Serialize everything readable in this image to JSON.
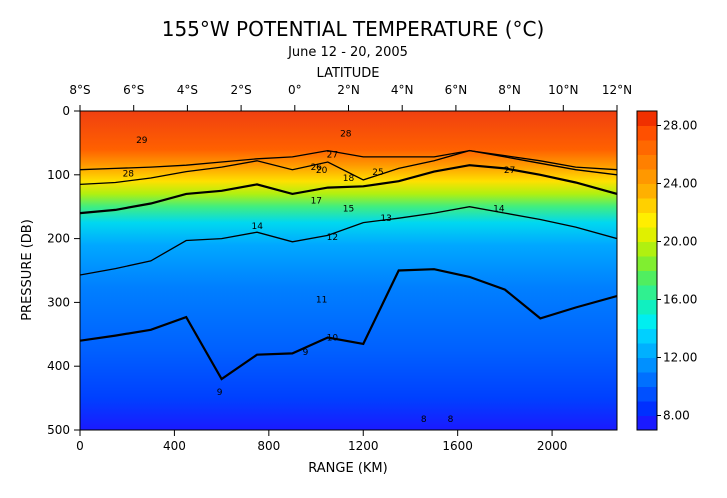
{
  "chart_data": {
    "type": "heatmap",
    "title": "155°W POTENTIAL TEMPERATURE (°C)",
    "subtitle": "June 12 - 20, 2005",
    "top_axis_label": "LATITUDE",
    "top_ticks": [
      "8°S",
      "6°S",
      "4°S",
      "2°S",
      "0°",
      "2°N",
      "4°N",
      "6°N",
      "8°N",
      "10°N",
      "12°N"
    ],
    "xlabel": "RANGE (KM)",
    "ylabel": "PRESSURE (DB)",
    "xlim": [
      0,
      2275
    ],
    "ylim": [
      500,
      0
    ],
    "x_ticks": [
      0,
      400,
      800,
      1200,
      1600,
      2000
    ],
    "y_ticks": [
      0,
      100,
      200,
      300,
      400,
      500
    ],
    "colorbar": {
      "ticks": [
        8.0,
        12.0,
        16.0,
        20.0,
        24.0,
        28.0
      ],
      "tick_labels": [
        "8.00",
        "12.00",
        "16.00",
        "20.00",
        "24.00",
        "28.00"
      ],
      "range": [
        7,
        29
      ],
      "colors": [
        "#1a1aff",
        "#0030ff",
        "#0050ff",
        "#0070ff",
        "#0090ff",
        "#00b0ff",
        "#00d0ff",
        "#00eef0",
        "#10f0c0",
        "#30f090",
        "#50ee60",
        "#80ee30",
        "#b0f010",
        "#e0f000",
        "#ffee00",
        "#ffd000",
        "#ffb000",
        "#ff9800",
        "#ff8000",
        "#ff6800",
        "#ff5000",
        "#f03000"
      ]
    },
    "x": [
      0,
      150,
      300,
      450,
      600,
      750,
      900,
      1050,
      1200,
      1350,
      1500,
      1650,
      1800,
      1950,
      2100,
      2275
    ],
    "series": [
      {
        "name": "10",
        "values": [
          360,
          352,
          343,
          323,
          420,
          382,
          380,
          355,
          365,
          250,
          248,
          260,
          280,
          325,
          308,
          290
        ]
      },
      {
        "name": "14",
        "values": [
          257,
          247,
          235,
          203,
          200,
          190,
          205,
          195,
          175,
          168,
          160,
          150,
          160,
          170,
          182,
          200
        ]
      },
      {
        "name": "20",
        "values": [
          160,
          155,
          145,
          130,
          125,
          115,
          130,
          120,
          118,
          110,
          95,
          85,
          90,
          100,
          112,
          130
        ]
      },
      {
        "name": "26",
        "values": [
          115,
          112,
          105,
          95,
          88,
          78,
          92,
          80,
          108,
          90,
          78,
          62,
          72,
          82,
          92,
          100
        ]
      },
      {
        "name": "28",
        "values": [
          92,
          90,
          88,
          85,
          80,
          75,
          72,
          62,
          72,
          72,
          72,
          62,
          70,
          78,
          88,
          92
        ]
      }
    ],
    "contour_labels": [
      "29",
      "28",
      "28",
      "27",
      "25",
      "27",
      "26",
      "20",
      "18",
      "17",
      "15",
      "14",
      "14",
      "12",
      "13",
      "11",
      "10",
      "9",
      "8",
      "9",
      "8"
    ]
  }
}
